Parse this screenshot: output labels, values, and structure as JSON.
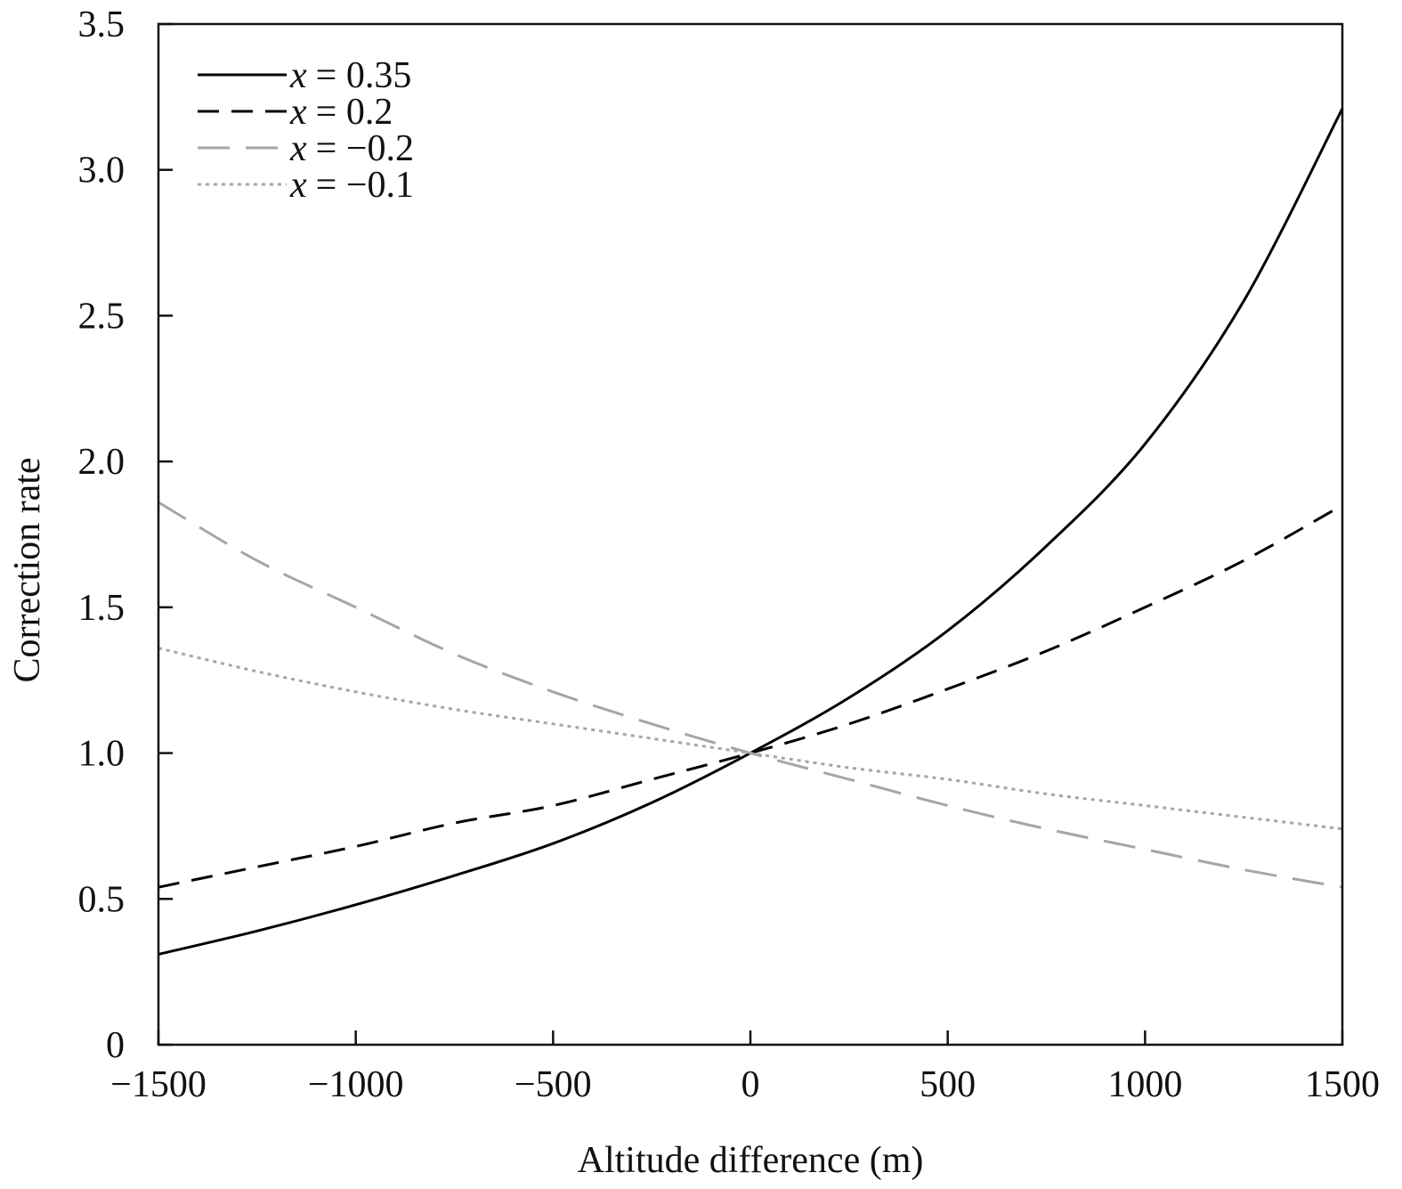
{
  "chart_data": {
    "type": "line",
    "title": "",
    "xlabel": "Altitude difference (m)",
    "ylabel": "Correction rate",
    "xlim": [
      -1500,
      1500
    ],
    "ylim": [
      0,
      3.5
    ],
    "x_ticks": [
      -1500,
      -1000,
      -500,
      0,
      500,
      1000,
      1500
    ],
    "x_tick_labels": [
      "−1500",
      "−1000",
      "−500",
      "0",
      "500",
      "1000",
      "1500"
    ],
    "y_ticks": [
      0,
      0.5,
      1.0,
      1.5,
      2.0,
      2.5,
      3.0,
      3.5
    ],
    "y_tick_labels": [
      "0",
      "0.5",
      "1.0",
      "1.5",
      "2.0",
      "2.5",
      "3.0",
      "3.5"
    ],
    "grid": false,
    "legend_position": "top-left",
    "x": [
      -1500,
      -1250,
      -1000,
      -750,
      -500,
      -250,
      0,
      250,
      500,
      750,
      1000,
      1250,
      1500
    ],
    "series": [
      {
        "name": "x = 0.35",
        "legend_var": "x",
        "legend_value": "= 0.35",
        "style": "solid",
        "color": "#000000",
        "values": [
          0.31,
          0.39,
          0.48,
          0.58,
          0.69,
          0.83,
          1.0,
          1.19,
          1.42,
          1.71,
          2.06,
          2.55,
          3.21
        ]
      },
      {
        "name": "x = 0.2",
        "legend_var": "x",
        "legend_value": "= 0.2",
        "style": "dashed",
        "color": "#000000",
        "values": [
          0.54,
          0.61,
          0.68,
          0.76,
          0.82,
          0.91,
          1.0,
          1.1,
          1.22,
          1.35,
          1.5,
          1.66,
          1.85
        ]
      },
      {
        "name": "x = −0.2",
        "legend_var": "x",
        "legend_value": "= −0.2",
        "style": "long-dashed",
        "color": "#a6a6a6",
        "values": [
          1.86,
          1.66,
          1.5,
          1.34,
          1.21,
          1.1,
          1.0,
          0.91,
          0.82,
          0.74,
          0.67,
          0.6,
          0.54
        ]
      },
      {
        "name": "x = −0.1",
        "legend_var": "x",
        "legend_value": "= −0.1",
        "style": "dotted",
        "color": "#a6a6a6",
        "values": [
          1.36,
          1.28,
          1.21,
          1.15,
          1.1,
          1.05,
          1.0,
          0.95,
          0.91,
          0.86,
          0.82,
          0.78,
          0.74
        ]
      }
    ]
  }
}
